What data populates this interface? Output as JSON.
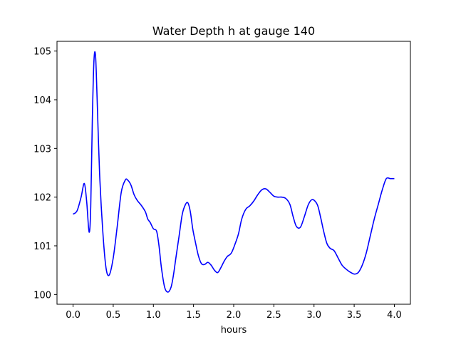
{
  "chart_data": {
    "type": "line",
    "title": "Water Depth h at gauge 140",
    "xlabel": "hours",
    "ylabel": "",
    "xlim": [
      -0.2,
      4.2
    ],
    "ylim": [
      99.8,
      105.2
    ],
    "xticks": [
      0.0,
      0.5,
      1.0,
      1.5,
      2.0,
      2.5,
      3.0,
      3.5,
      4.0
    ],
    "xtick_labels": [
      "0.0",
      "0.5",
      "1.0",
      "1.5",
      "2.0",
      "2.5",
      "3.0",
      "3.5",
      "4.0"
    ],
    "yticks": [
      100,
      101,
      102,
      103,
      104,
      105
    ],
    "ytick_labels": [
      "100",
      "101",
      "102",
      "103",
      "104",
      "105"
    ],
    "grid": false,
    "series": [
      {
        "name": "",
        "color": "#0000ff",
        "x": [
          0.0,
          0.05,
          0.1,
          0.14,
          0.17,
          0.2,
          0.22,
          0.24,
          0.26,
          0.28,
          0.3,
          0.33,
          0.37,
          0.41,
          0.45,
          0.5,
          0.55,
          0.6,
          0.65,
          0.68,
          0.72,
          0.76,
          0.8,
          0.85,
          0.9,
          0.93,
          0.96,
          1.0,
          1.04,
          1.07,
          1.1,
          1.14,
          1.18,
          1.22,
          1.25,
          1.28,
          1.32,
          1.36,
          1.4,
          1.43,
          1.46,
          1.49,
          1.52,
          1.56,
          1.6,
          1.64,
          1.68,
          1.72,
          1.76,
          1.8,
          1.84,
          1.88,
          1.92,
          1.97,
          2.02,
          2.06,
          2.1,
          2.15,
          2.2,
          2.25,
          2.3,
          2.35,
          2.4,
          2.45,
          2.5,
          2.55,
          2.6,
          2.65,
          2.7,
          2.74,
          2.78,
          2.83,
          2.88,
          2.93,
          2.98,
          3.04,
          3.08,
          3.12,
          3.16,
          3.2,
          3.25,
          3.3,
          3.35,
          3.4,
          3.45,
          3.5,
          3.55,
          3.6,
          3.65,
          3.7,
          3.75,
          3.8,
          3.85,
          3.9,
          3.95,
          4.0
        ],
        "y": [
          101.65,
          101.72,
          102.0,
          102.28,
          101.9,
          101.28,
          101.8,
          103.6,
          104.8,
          104.9,
          104.0,
          102.5,
          101.3,
          100.55,
          100.4,
          100.75,
          101.4,
          102.1,
          102.35,
          102.35,
          102.25,
          102.05,
          101.93,
          101.83,
          101.7,
          101.55,
          101.48,
          101.35,
          101.3,
          101.0,
          100.55,
          100.15,
          100.05,
          100.15,
          100.4,
          100.75,
          101.2,
          101.65,
          101.85,
          101.88,
          101.7,
          101.35,
          101.1,
          100.8,
          100.63,
          100.62,
          100.66,
          100.6,
          100.5,
          100.45,
          100.55,
          100.68,
          100.78,
          100.85,
          101.05,
          101.25,
          101.55,
          101.75,
          101.82,
          101.92,
          102.05,
          102.15,
          102.17,
          102.1,
          102.02,
          102.0,
          102.0,
          101.97,
          101.85,
          101.6,
          101.4,
          101.38,
          101.6,
          101.85,
          101.95,
          101.85,
          101.6,
          101.3,
          101.05,
          100.95,
          100.9,
          100.75,
          100.6,
          100.52,
          100.46,
          100.42,
          100.45,
          100.6,
          100.85,
          101.2,
          101.55,
          101.85,
          102.15,
          102.38,
          102.38,
          102.38
        ]
      }
    ]
  }
}
